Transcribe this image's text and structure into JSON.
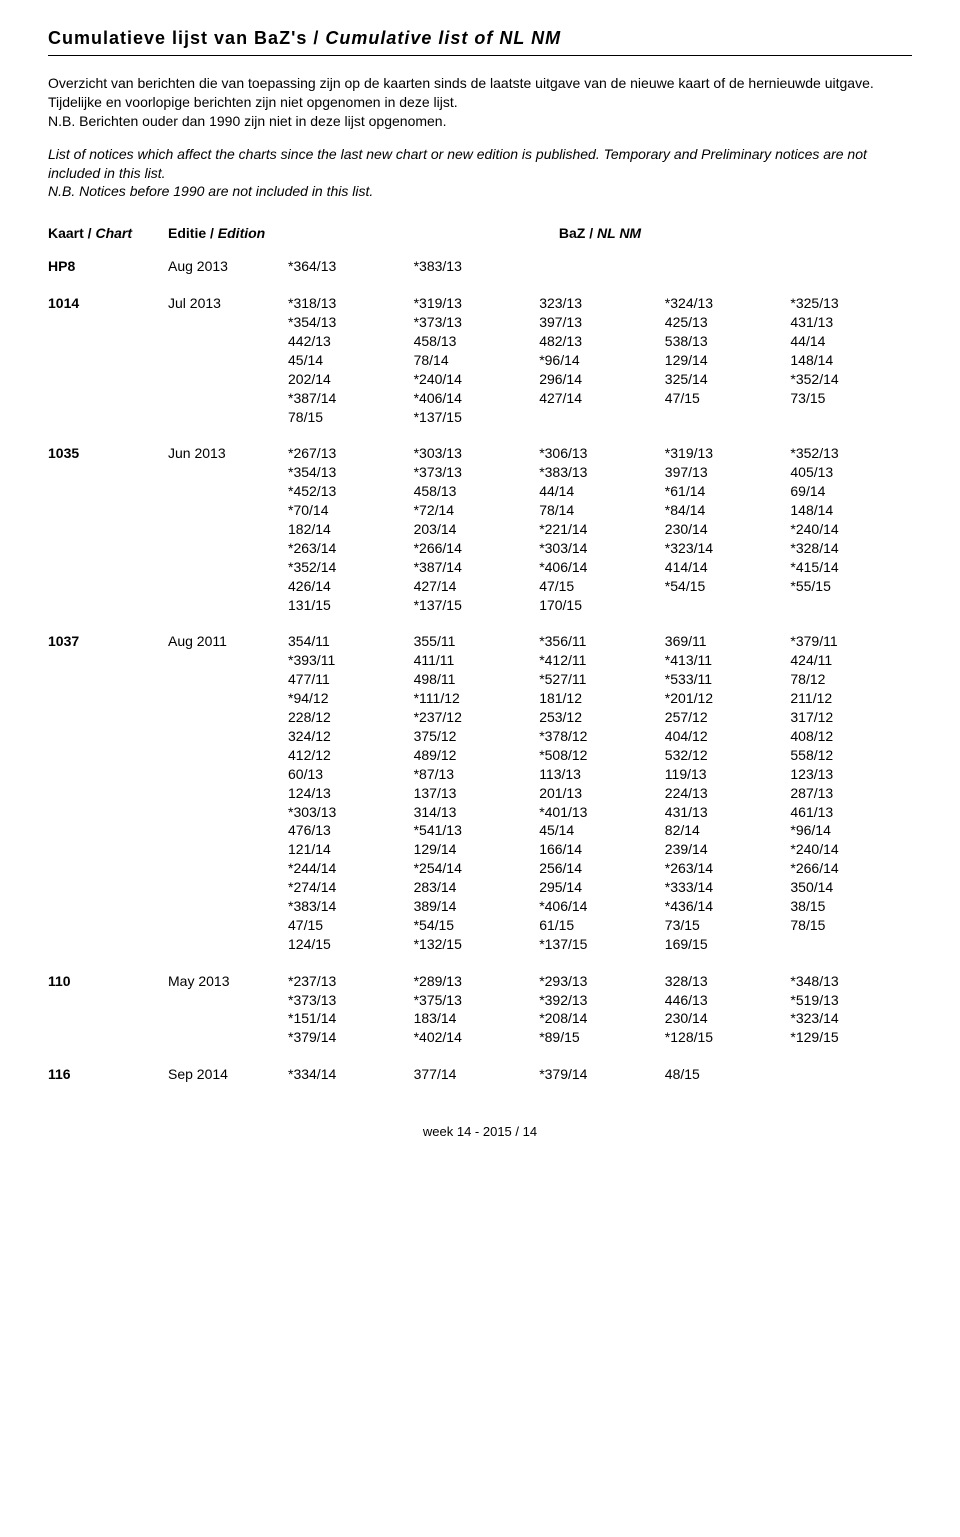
{
  "title": {
    "nl": "Cumulatieve lijst van BaZ's /",
    "en": "Cumulative list of NL NM"
  },
  "intro": {
    "nl": "Overzicht van berichten die van toepassing zijn op de kaarten sinds de laatste uitgave van de nieuwe kaart of de hernieuwde uitgave. Tijdelijke en voorlopige berichten zijn niet opgenomen in deze lijst.",
    "nl_nb": "N.B. Berichten ouder dan 1990 zijn niet in deze lijst opgenomen.",
    "en": "List of notices which affect the charts since the last new chart or new edition is published. Temporary and Preliminary notices are not included in this list.",
    "en_nb": "N.B. Notices before 1990 are not included in this list."
  },
  "headers": {
    "chart": "Kaart / ",
    "chart_it": "Chart",
    "edition": "Editie / ",
    "edition_it": "Edition",
    "baz": "BaZ / ",
    "baz_it": "NL NM"
  },
  "entries": [
    {
      "chart": "HP8",
      "edition": "Aug 2013",
      "values": [
        "*364/13",
        "*383/13"
      ]
    },
    {
      "chart": "1014",
      "edition": "Jul 2013",
      "values": [
        "*318/13",
        "*319/13",
        "323/13",
        "*324/13",
        "*325/13",
        "*354/13",
        "*373/13",
        "397/13",
        "425/13",
        "431/13",
        "442/13",
        "458/13",
        "482/13",
        "538/13",
        "44/14",
        "45/14",
        "78/14",
        "*96/14",
        "129/14",
        "148/14",
        "202/14",
        "*240/14",
        "296/14",
        "325/14",
        "*352/14",
        "*387/14",
        "*406/14",
        "427/14",
        "47/15",
        "73/15",
        "78/15",
        "*137/15"
      ]
    },
    {
      "chart": "1035",
      "edition": "Jun 2013",
      "values": [
        "*267/13",
        "*303/13",
        "*306/13",
        "*319/13",
        "*352/13",
        "*354/13",
        "*373/13",
        "*383/13",
        "397/13",
        "405/13",
        "*452/13",
        "458/13",
        "44/14",
        "*61/14",
        "69/14",
        "*70/14",
        "*72/14",
        "78/14",
        "*84/14",
        "148/14",
        "182/14",
        "203/14",
        "*221/14",
        "230/14",
        "*240/14",
        "*263/14",
        "*266/14",
        "*303/14",
        "*323/14",
        "*328/14",
        "*352/14",
        "*387/14",
        "*406/14",
        "414/14",
        "*415/14",
        "426/14",
        "427/14",
        "47/15",
        "*54/15",
        "*55/15",
        "131/15",
        "*137/15",
        "170/15"
      ]
    },
    {
      "chart": "1037",
      "edition": "Aug 2011",
      "values": [
        "354/11",
        "355/11",
        "*356/11",
        "369/11",
        "*379/11",
        "*393/11",
        "411/11",
        "*412/11",
        "*413/11",
        "424/11",
        "477/11",
        "498/11",
        "*527/11",
        "*533/11",
        "78/12",
        "*94/12",
        "*111/12",
        "181/12",
        "*201/12",
        "211/12",
        "228/12",
        "*237/12",
        "253/12",
        "257/12",
        "317/12",
        "324/12",
        "375/12",
        "*378/12",
        "404/12",
        "408/12",
        "412/12",
        "489/12",
        "*508/12",
        "532/12",
        "558/12",
        "60/13",
        "*87/13",
        "113/13",
        "119/13",
        "123/13",
        "124/13",
        "137/13",
        "201/13",
        "224/13",
        "287/13",
        "*303/13",
        "314/13",
        "*401/13",
        "431/13",
        "461/13",
        "476/13",
        "*541/13",
        "45/14",
        "82/14",
        "*96/14",
        "121/14",
        "129/14",
        "166/14",
        "239/14",
        "*240/14",
        "*244/14",
        "*254/14",
        "256/14",
        "*263/14",
        "*266/14",
        "*274/14",
        "283/14",
        "295/14",
        "*333/14",
        "350/14",
        "*383/14",
        "389/14",
        "*406/14",
        "*436/14",
        "38/15",
        "47/15",
        "*54/15",
        "61/15",
        "73/15",
        "78/15",
        "124/15",
        "*132/15",
        "*137/15",
        "169/15"
      ]
    },
    {
      "chart": "110",
      "edition": "May 2013",
      "values": [
        "*237/13",
        "*289/13",
        "*293/13",
        "328/13",
        "*348/13",
        "*373/13",
        "*375/13",
        "*392/13",
        "446/13",
        "*519/13",
        "*151/14",
        "183/14",
        "*208/14",
        "230/14",
        "*323/14",
        "*379/14",
        "*402/14",
        "*89/15",
        "*128/15",
        "*129/15"
      ]
    },
    {
      "chart": "116",
      "edition": "Sep 2014",
      "values": [
        "*334/14",
        "377/14",
        "*379/14",
        "48/15"
      ]
    }
  ],
  "footer": "week 14 - 2015 / 14"
}
